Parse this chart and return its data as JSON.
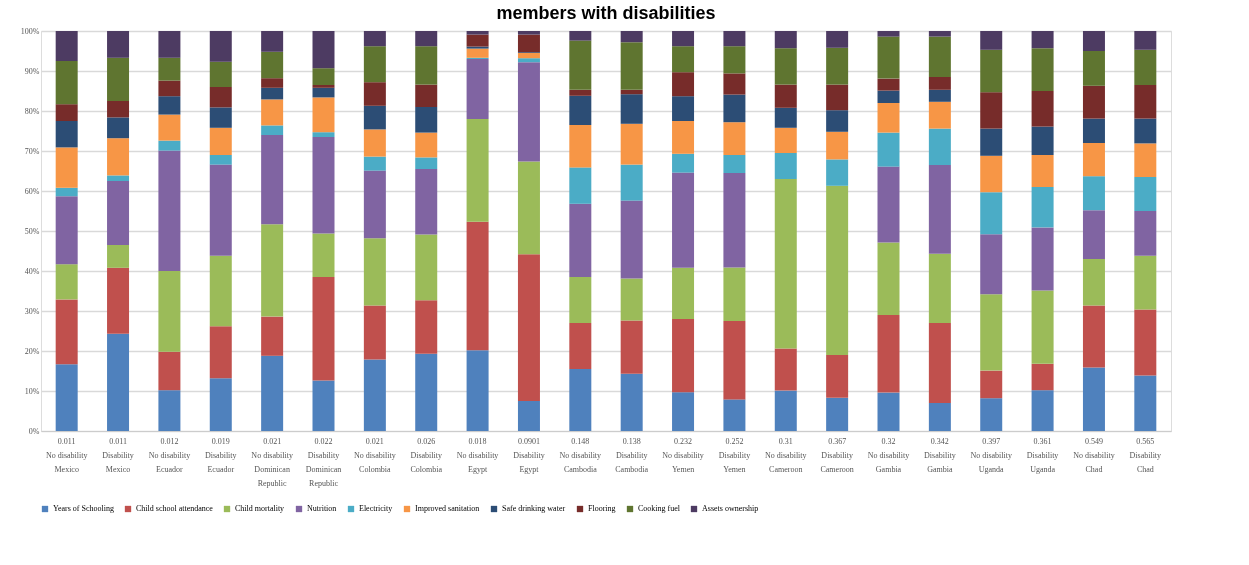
{
  "chart_data": {
    "type": "bar",
    "stacked": true,
    "title": "members with disabilities",
    "categories": [
      "0.011\nNo disability\nMexico",
      "0.011\nDisability\nMexico",
      "0.012\nNo disability\nEcuador",
      "0.019\nDisability\nEcuador",
      "0.021\nNo disability\nDominican Republic",
      "0.022\nDisability\nDominican Republic",
      "0.021\nNo disability\nColombia",
      "0.026\nDisability\nColombia",
      "0.018\nNo disability\nEgypt",
      "0.0901\nDisability\nEgypt",
      "0.148\nNo disability\nCambodia",
      "0.138\nDisability\nCambodia",
      "0.232\nNo disability\nYemen",
      "0.252\nDisability\nYemen",
      "0.31\nNo disability\nCameroon",
      "0.367\nDisability\nCameroon",
      "0.32\nNo disability\nGambia",
      "0.342\nDisability\nGambia",
      "0.397\nNo disability\nUganda",
      "0.361\nDisability\nUganda",
      "0.549\nNo disability\nChad",
      "0.565\nDisability\nChad"
    ],
    "series": [
      {
        "name": "Years of Schooling",
        "color": "#4f81bd",
        "values": [
          16.7,
          24.3,
          10.2,
          13.2,
          18.8,
          12.6,
          17.9,
          19.3,
          20.2,
          7.5,
          15.5,
          14.3,
          9.7,
          7.9,
          10.1,
          8.3,
          9.6,
          7.0,
          8.2,
          10.2,
          15.9,
          13.9
        ]
      },
      {
        "name": "Child school attendance",
        "color": "#c0504d",
        "values": [
          16.2,
          16.5,
          9.6,
          13.0,
          9.8,
          25.9,
          13.5,
          13.4,
          32.1,
          36.7,
          11.5,
          13.3,
          18.3,
          19.6,
          10.5,
          10.7,
          19.4,
          20.0,
          6.9,
          6.6,
          15.5,
          16.5
        ]
      },
      {
        "name": "Child mortality",
        "color": "#9bbb59",
        "values": [
          8.8,
          5.7,
          20.2,
          17.6,
          23.1,
          10.9,
          16.8,
          16.4,
          25.7,
          23.2,
          11.5,
          10.5,
          12.8,
          13.4,
          42.4,
          42.3,
          18.1,
          17.3,
          19.1,
          18.3,
          11.6,
          13.4
        ]
      },
      {
        "name": "Nutrition",
        "color": "#8064a2",
        "values": [
          17.0,
          16.0,
          30.1,
          22.8,
          22.3,
          24.1,
          16.9,
          16.4,
          15.0,
          24.8,
          18.3,
          19.5,
          23.8,
          23.6,
          0,
          0,
          19.0,
          22.2,
          15.0,
          15.8,
          12.2,
          11.2
        ]
      },
      {
        "name": "Electricity",
        "color": "#4bacc6",
        "values": [
          2.1,
          1.4,
          2.5,
          2.4,
          2.4,
          1.2,
          3.5,
          2.9,
          0.3,
          1.0,
          9.1,
          9.0,
          4.7,
          4.5,
          6.5,
          6.6,
          8.5,
          9.1,
          10.5,
          10.1,
          8.5,
          8.5
        ]
      },
      {
        "name": "Improved sanitation",
        "color": "#f79646",
        "values": [
          10.1,
          9.3,
          6.5,
          6.8,
          6.5,
          8.7,
          6.8,
          6.2,
          2.3,
          1.3,
          10.6,
          10.2,
          8.2,
          8.2,
          6.3,
          6.9,
          7.4,
          6.7,
          9.1,
          8.0,
          8.3,
          8.4
        ]
      },
      {
        "name": "Safe drinking water",
        "color": "#2c4d75",
        "values": [
          6.6,
          5.2,
          4.6,
          5.1,
          2.9,
          2.4,
          5.9,
          6.4,
          0.5,
          0.2,
          7.3,
          7.4,
          6.2,
          6.9,
          5.0,
          5.4,
          3.1,
          3.0,
          6.8,
          7.1,
          6.1,
          6.2
        ]
      },
      {
        "name": "Flooring",
        "color": "#772c2a",
        "values": [
          4.2,
          4.1,
          3.9,
          5.1,
          2.4,
          0.7,
          5.9,
          5.6,
          3.0,
          4.4,
          1.5,
          1.1,
          6.0,
          5.3,
          5.8,
          6.4,
          3.0,
          3.2,
          9.1,
          8.9,
          8.2,
          8.4
        ]
      },
      {
        "name": "Cooking fuel",
        "color": "#5f7530",
        "values": [
          10.8,
          10.8,
          5.7,
          6.3,
          6.6,
          4.2,
          9.0,
          9.6,
          0,
          0,
          12.3,
          11.9,
          6.5,
          6.8,
          9.1,
          9.2,
          10.5,
          10.1,
          10.6,
          10.7,
          8.7,
          8.8
        ]
      },
      {
        "name": "Assets ownership",
        "color": "#4d3b62",
        "values": [
          7.5,
          6.7,
          6.7,
          7.7,
          5.2,
          9.3,
          3.8,
          3.8,
          0.9,
          0.9,
          2.4,
          2.8,
          3.8,
          3.8,
          4.3,
          4.2,
          1.4,
          1.4,
          4.7,
          4.3,
          5.0,
          4.7
        ]
      }
    ],
    "ylim": [
      0,
      100
    ],
    "yticks": [
      {
        "value": 0,
        "label": "0%"
      },
      {
        "value": 10,
        "label": "10%"
      },
      {
        "value": 20,
        "label": "20%"
      },
      {
        "value": 30,
        "label": "30%"
      },
      {
        "value": 40,
        "label": "40%"
      },
      {
        "value": 50,
        "label": "50%"
      },
      {
        "value": 60,
        "label": "60%"
      },
      {
        "value": 70,
        "label": "70%"
      },
      {
        "value": 80,
        "label": "80%"
      },
      {
        "value": 90,
        "label": "90%"
      },
      {
        "value": 100,
        "label": "100%"
      }
    ],
    "grid": "y",
    "legend": "bottom"
  }
}
